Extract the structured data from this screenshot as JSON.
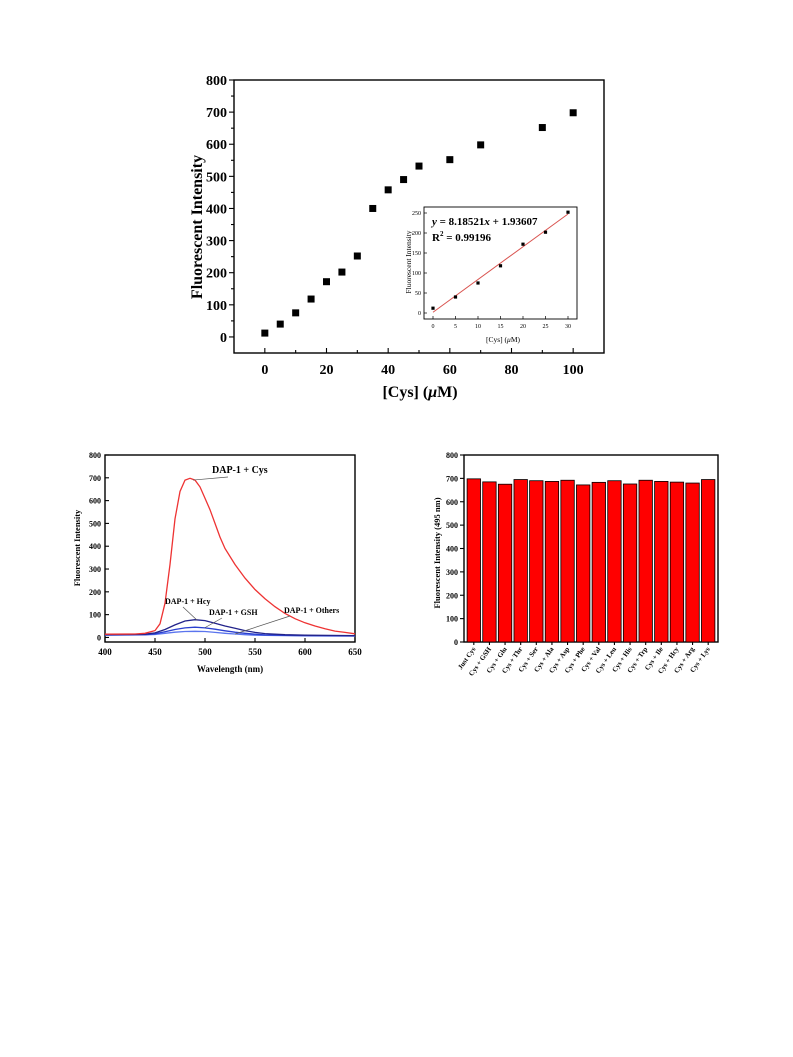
{
  "chart_data": [
    {
      "type": "scatter",
      "xlabel_parts": [
        "[Cys] (",
        "μ",
        "M)"
      ],
      "ylabel": "Fluorescent Intensity",
      "xlim": [
        -10,
        110
      ],
      "ylim": [
        -50,
        800
      ],
      "xticks": [
        0,
        20,
        40,
        60,
        80,
        100
      ],
      "yticks": [
        0,
        100,
        200,
        300,
        400,
        500,
        600,
        700,
        800
      ],
      "x": [
        0,
        5,
        10,
        15,
        20,
        25,
        30,
        35,
        40,
        45,
        50,
        60,
        70,
        90,
        100
      ],
      "y": [
        12,
        40,
        75,
        118,
        172,
        202,
        252,
        400,
        458,
        490,
        532,
        552,
        598,
        652,
        698
      ],
      "inset": {
        "type": "scatter",
        "xlabel_parts": [
          "[Cys] (",
          "μ",
          "M)"
        ],
        "ylabel": "Fluorescent Intensity",
        "xlim": [
          -2,
          32
        ],
        "ylim": [
          -15,
          265
        ],
        "xticks": [
          0,
          5,
          10,
          15,
          20,
          25,
          30
        ],
        "yticks": [
          0,
          50,
          100,
          150,
          200,
          250
        ],
        "x": [
          0,
          5,
          10,
          15,
          20,
          25,
          30
        ],
        "y": [
          12,
          40,
          75,
          118,
          172,
          202,
          252
        ],
        "fit_line": {
          "slope": 8.18521,
          "intercept": 1.93607,
          "color": "#d9534f"
        },
        "equation_parts": [
          "y",
          " = 8.18521",
          "x",
          " + 1.93607"
        ],
        "r2_parts": [
          "R",
          "2",
          " = 0.99196"
        ]
      }
    },
    {
      "type": "line",
      "xlabel": "Wavelength (nm)",
      "ylabel": "Fluorescent Intensity",
      "xlim": [
        400,
        650
      ],
      "ylim": [
        -20,
        800
      ],
      "xticks": [
        400,
        450,
        500,
        550,
        600,
        650
      ],
      "yticks": [
        0,
        100,
        200,
        300,
        400,
        500,
        600,
        700,
        800
      ],
      "series": [
        {
          "name": "DAP-1 + Cys",
          "color": "#ee3333",
          "x": [
            400,
            430,
            440,
            450,
            455,
            460,
            465,
            470,
            475,
            480,
            485,
            490,
            495,
            500,
            505,
            510,
            515,
            520,
            530,
            540,
            550,
            560,
            570,
            580,
            590,
            600,
            610,
            620,
            630,
            640,
            650
          ],
          "y": [
            14,
            15,
            18,
            30,
            60,
            150,
            320,
            520,
            640,
            690,
            698,
            690,
            660,
            610,
            560,
            500,
            440,
            390,
            320,
            260,
            210,
            170,
            135,
            105,
            82,
            64,
            50,
            38,
            28,
            22,
            16
          ]
        },
        {
          "name": "DAP-1 + Hcy",
          "color": "#22238a",
          "x": [
            400,
            440,
            450,
            460,
            470,
            480,
            490,
            500,
            510,
            520,
            530,
            540,
            550,
            560,
            580,
            600,
            650
          ],
          "y": [
            12,
            14,
            20,
            35,
            55,
            72,
            78,
            74,
            62,
            50,
            40,
            30,
            22,
            17,
            12,
            10,
            8
          ]
        },
        {
          "name": "DAP-1 + GSH",
          "color": "#2a3fcf",
          "x": [
            400,
            440,
            450,
            460,
            470,
            480,
            490,
            500,
            510,
            520,
            530,
            540,
            550,
            560,
            580,
            600,
            650
          ],
          "y": [
            11,
            12,
            16,
            25,
            35,
            42,
            45,
            42,
            36,
            29,
            23,
            18,
            14,
            11,
            9,
            8,
            7
          ]
        },
        {
          "name": "DAP-1 + Others",
          "color": "#5a74ee",
          "x": [
            400,
            440,
            450,
            460,
            470,
            480,
            490,
            500,
            510,
            520,
            530,
            540,
            550,
            560,
            580,
            600,
            650
          ],
          "y": [
            10,
            11,
            13,
            18,
            23,
            26,
            27,
            26,
            22,
            18,
            15,
            12,
            10,
            9,
            8,
            7,
            6
          ]
        }
      ],
      "annotations": [
        {
          "text": "DAP-1 + Cys",
          "points_to": [
            488,
            690
          ]
        },
        {
          "text": "DAP-1 + Hcy",
          "points_to": [
            492,
            76
          ]
        },
        {
          "text": "DAP-1 + GSH",
          "points_to": [
            500,
            43
          ]
        },
        {
          "text": "DAP-1 + Others",
          "points_to": [
            530,
            15
          ]
        }
      ]
    },
    {
      "type": "bar",
      "ylabel": "Fluorescent Intensity (495 nm)",
      "ylim": [
        0,
        800
      ],
      "yticks": [
        0,
        100,
        200,
        300,
        400,
        500,
        600,
        700,
        800
      ],
      "bar_color": "#ff0000",
      "categories": [
        "Just Cys",
        "Cys + GSH",
        "Cys + Glu",
        "Cys + Thr",
        "Cys + Ser",
        "Cys + Ala",
        "Cys + Asp",
        "Cys + Phe",
        "Cys + Val",
        "Cys + Leu",
        "Cys + His",
        "Cys + Trp",
        "Cys + Ile",
        "Cys + Hcy",
        "Cys + Arg",
        "Cys + Lys"
      ],
      "values": [
        698,
        685,
        675,
        695,
        690,
        687,
        692,
        672,
        683,
        690,
        676,
        692,
        687,
        684,
        680,
        695
      ]
    }
  ]
}
